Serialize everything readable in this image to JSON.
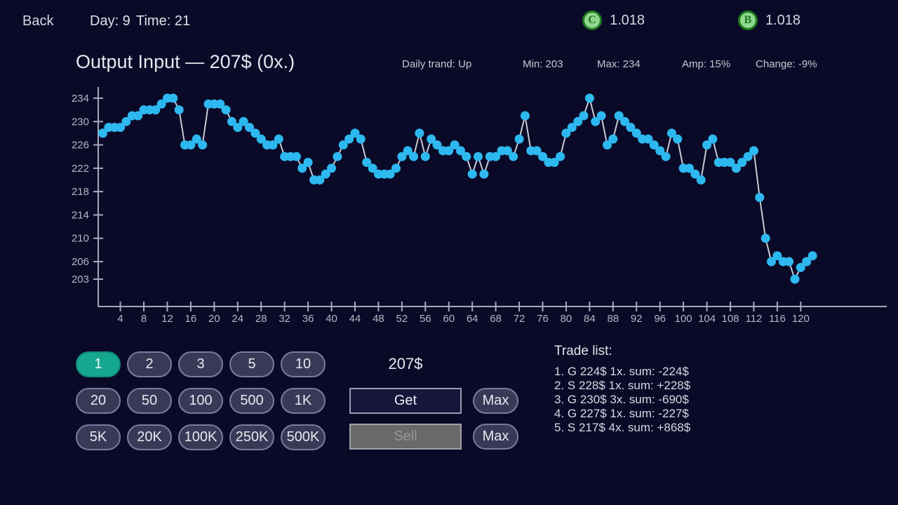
{
  "top_bar": {
    "back": "Back",
    "day": "Day: 9",
    "time": "Time: 21",
    "coins": [
      {
        "symbol": "C",
        "value": "1.018"
      },
      {
        "symbol": "B",
        "value": "1.018"
      }
    ]
  },
  "header": {
    "title": "Output Input — 207$ (0x.)",
    "stats": [
      "Daily trand: Up",
      "Min: 203",
      "Max: 234",
      "Amp: 15%",
      "Change: -9%"
    ]
  },
  "chart_data": {
    "type": "line",
    "title": "Output Input — 207$ (0x.)",
    "x_start": 1,
    "values": [
      228,
      229,
      229,
      229,
      230,
      231,
      231,
      232,
      232,
      232,
      233,
      234,
      234,
      232,
      226,
      226,
      227,
      226,
      233,
      233,
      233,
      232,
      230,
      229,
      230,
      229,
      228,
      227,
      226,
      226,
      227,
      224,
      224,
      224,
      222,
      223,
      220,
      220,
      221,
      222,
      224,
      226,
      227,
      228,
      227,
      223,
      222,
      221,
      221,
      221,
      222,
      224,
      225,
      224,
      228,
      224,
      227,
      226,
      225,
      225,
      226,
      225,
      224,
      221,
      224,
      221,
      224,
      224,
      225,
      225,
      224,
      227,
      231,
      225,
      225,
      224,
      223,
      223,
      224,
      228,
      229,
      230,
      231,
      234,
      230,
      231,
      226,
      227,
      231,
      230,
      229,
      228,
      227,
      227,
      226,
      225,
      224,
      228,
      227,
      222,
      222,
      221,
      220,
      226,
      227,
      223,
      223,
      223,
      222,
      223,
      224,
      225,
      217,
      210,
      206,
      207,
      206,
      206,
      203,
      205,
      206,
      207
    ],
    "x_ticks": [
      4,
      8,
      12,
      16,
      20,
      24,
      28,
      32,
      36,
      40,
      44,
      48,
      52,
      56,
      60,
      64,
      68,
      72,
      76,
      80,
      84,
      88,
      92,
      96,
      100,
      104,
      108,
      112,
      116,
      120
    ],
    "y_ticks": [
      234,
      230,
      226,
      222,
      218,
      214,
      210,
      206,
      203
    ],
    "ylim": [
      203,
      234
    ],
    "point_color": "#2eb8f0",
    "line_color": "#c9c9d2",
    "axis_color": "#a9a9ba",
    "label_color": "#b6b6c4"
  },
  "trade_panel": {
    "qty_options": [
      "1",
      "2",
      "3",
      "5",
      "10",
      "20",
      "50",
      "100",
      "500",
      "1K",
      "5K",
      "20K",
      "100K",
      "250K",
      "500K"
    ],
    "qty_selected": "1",
    "price": "207$",
    "get_label": "Get",
    "sell_label": "Sell",
    "max_label": "Max"
  },
  "trade_list": {
    "title": "Trade list:",
    "entries": [
      "1. G 224$ 1x. sum: -224$",
      "2. S 228$ 1x. sum: +228$",
      "3. G 230$ 3x. sum: -690$",
      "4. G 227$ 1x. sum: -227$",
      "5. S 217$ 4x. sum: +868$"
    ]
  },
  "colors": {
    "background": "#0a0a28",
    "accent_teal": "#16a78f",
    "point_cyan": "#2eb8f0",
    "coin_green_bg": "#90d890",
    "coin_green_fg": "#1d7a1d",
    "disabled_gray": "#696969"
  }
}
